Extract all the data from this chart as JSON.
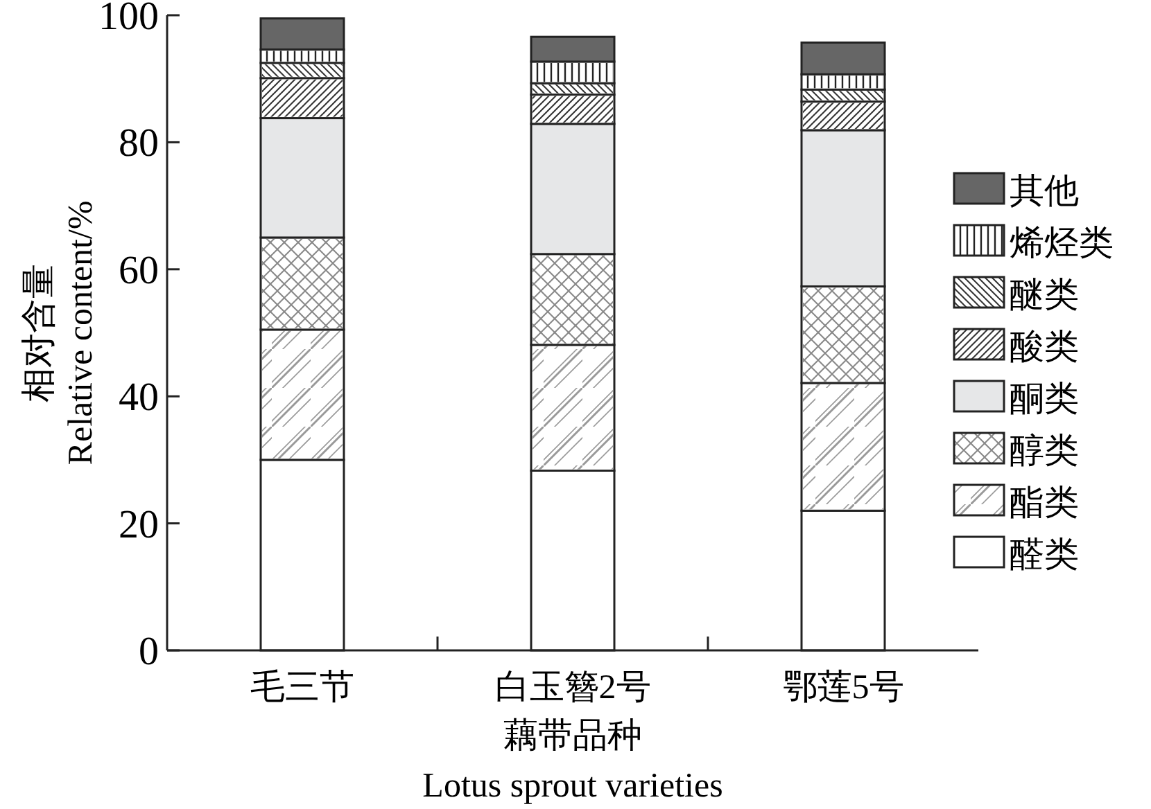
{
  "chart_data": {
    "type": "bar",
    "stacked": true,
    "categories": [
      "毛三节",
      "白玉簪2号",
      "鄂莲5号"
    ],
    "xlabel": "藕带品种\nLotus sprout varieties",
    "ylabel": "相对含量\nRelative content/%",
    "ylim": [
      0,
      100
    ],
    "yticks": [
      0,
      20,
      40,
      60,
      80,
      100
    ],
    "legend": "right",
    "grid": false,
    "series": [
      {
        "name": "醛类",
        "color": "#ffffff",
        "values": [
          30.0,
          28.3,
          22.0
        ]
      },
      {
        "name": "酯类",
        "color": "#ffffff",
        "values": [
          20.5,
          19.8,
          20.1
        ]
      },
      {
        "name": "醇类",
        "color": "#ffffff",
        "values": [
          14.5,
          14.3,
          15.2
        ]
      },
      {
        "name": "酮类",
        "color": "#e6e7e8",
        "values": [
          18.8,
          20.5,
          24.6
        ]
      },
      {
        "name": "酸类",
        "color": "#ffffff",
        "values": [
          6.3,
          4.6,
          4.5
        ]
      },
      {
        "name": "醚类",
        "color": "#ffffff",
        "values": [
          2.4,
          1.8,
          1.9
        ]
      },
      {
        "name": "烯烃类",
        "color": "#ffffff",
        "values": [
          2.1,
          3.4,
          2.4
        ]
      },
      {
        "name": "其他",
        "color": "#666666",
        "values": [
          4.9,
          3.9,
          5.0
        ]
      }
    ]
  }
}
